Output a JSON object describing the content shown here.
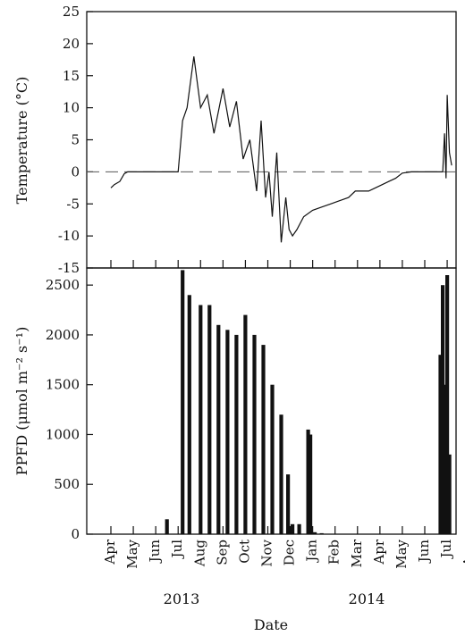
{
  "chart_data": [
    {
      "type": "line",
      "ylabel": "Temperature (°C)",
      "ylim": [
        -15,
        25
      ],
      "yticks": [
        -15,
        -10,
        -5,
        0,
        5,
        10,
        15,
        20,
        25
      ],
      "reference_line": {
        "y": 0,
        "style": "dashed"
      },
      "series": [
        {
          "x": [
            0.0,
            0.15,
            0.4,
            0.6,
            0.75,
            0.95,
            1.2,
            2.0,
            2.5,
            3.0,
            3.2,
            3.4,
            3.7,
            4.0,
            4.3,
            4.6,
            5.0,
            5.3,
            5.6,
            5.9,
            6.2,
            6.5,
            6.7,
            6.9,
            7.05,
            7.2,
            7.4,
            7.6,
            7.8,
            7.95,
            8.1,
            8.3,
            8.6,
            9.0,
            9.4,
            9.8,
            10.2,
            10.6,
            10.9,
            11.2,
            11.5,
            11.8,
            12.1,
            12.4,
            12.7,
            13.0,
            13.4,
            13.9,
            14.3,
            14.5,
            14.8,
            14.88,
            14.95,
            15.0,
            15.1,
            15.2
          ],
          "y": [
            -2.5,
            -2.0,
            -1.5,
            -0.3,
            0,
            0,
            0,
            0,
            0,
            0,
            8,
            10,
            18,
            10,
            12,
            6,
            13,
            7,
            11,
            2,
            5,
            -3,
            8,
            -4,
            0,
            -7,
            3,
            -11,
            -4,
            -9,
            -10,
            -9,
            -7,
            -6,
            -5.5,
            -5,
            -4.5,
            -4,
            -3,
            -3,
            -3,
            -2.5,
            -2,
            -1.5,
            -1,
            -0.2,
            0,
            0,
            0,
            0,
            0,
            6,
            -1,
            12,
            3,
            1
          ]
        }
      ]
    },
    {
      "type": "bar",
      "ylabel": "PPFD (μmol m⁻² s⁻¹)",
      "ylim": [
        0,
        2600
      ],
      "yticks": [
        0,
        500,
        1000,
        1500,
        2000,
        2500
      ],
      "x_ticks": [
        "Apr",
        "May",
        "Jun",
        "Jul",
        "Aug",
        "Sep",
        "Oct",
        "Nov",
        "Dec",
        "Jan",
        "Feb",
        "Mar",
        "Apr",
        "May",
        "Jun",
        "Jul",
        "Aug"
      ],
      "year_labels": [
        "2013",
        "2014"
      ],
      "xlabel": "Date",
      "series": [
        {
          "x": [
            2.5,
            3.0,
            3.2,
            3.5,
            4.0,
            4.4,
            4.8,
            5.2,
            5.6,
            6.0,
            6.4,
            6.8,
            7.2,
            7.6,
            7.9,
            8.1,
            8.4,
            8.8,
            8.9,
            9.1,
            9.4,
            14.7,
            14.8,
            14.9,
            15.0,
            15.1
          ],
          "values": [
            150,
            0,
            2650,
            2400,
            2300,
            2300,
            2100,
            2050,
            2000,
            2200,
            2000,
            1900,
            1500,
            1200,
            600,
            100,
            100,
            1050,
            1000,
            20,
            10,
            1800,
            2500,
            1500,
            2600,
            800
          ]
        }
      ]
    }
  ]
}
